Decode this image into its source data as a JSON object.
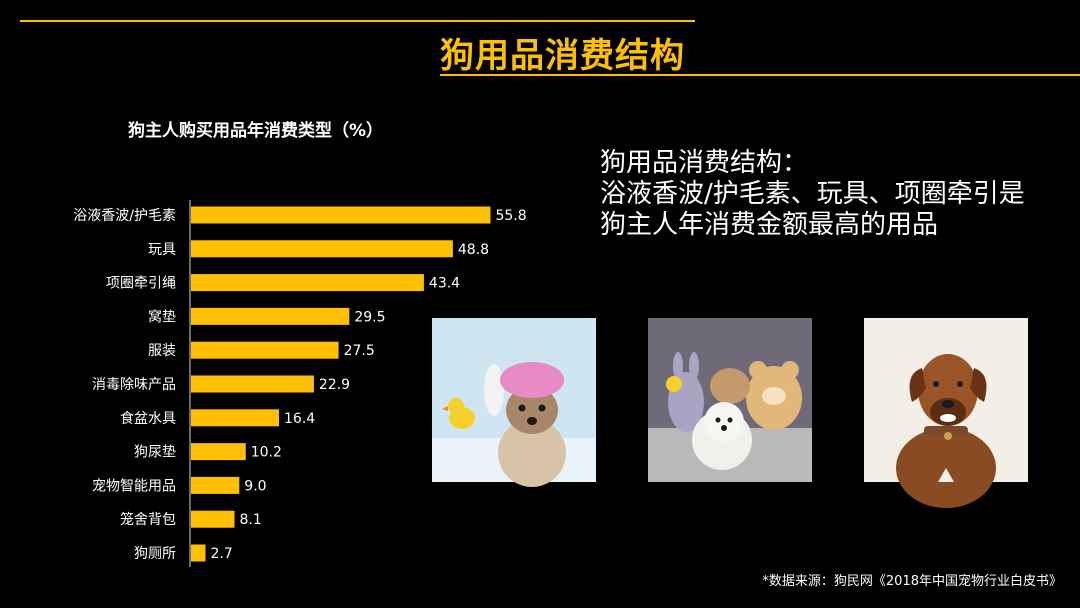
{
  "page": {
    "title": "狗用品消费结构",
    "accent_color": "#FFC000"
  },
  "chart_data": {
    "type": "bar",
    "orientation": "horizontal",
    "title": "狗主人购买用品年消费类型（%）",
    "categories": [
      "浴液香波/护毛素",
      "玩具",
      "项圈牵引绳",
      "窝垫",
      "服装",
      "消毒除味产品",
      "食盆水具",
      "狗尿垫",
      "宠物智能用品",
      "笼舍背包",
      "狗厕所"
    ],
    "values": [
      55.8,
      48.8,
      43.4,
      29.5,
      27.5,
      22.9,
      16.4,
      10.2,
      9.0,
      8.1,
      2.7
    ],
    "value_labels": [
      "55.8",
      "48.8",
      "43.4",
      "29.5",
      "27.5",
      "22.9",
      "16.4",
      "10.2",
      "9.0",
      "8.1",
      "2.7"
    ],
    "xlim": [
      0,
      60
    ],
    "bar_color": "#FFC000",
    "grid": false,
    "legend": "none"
  },
  "summary": {
    "lines": [
      "狗用品消费结构：",
      "浴液香波/护毛素、玩具、项圈牵引是",
      "狗主人年消费金额最高的用品"
    ]
  },
  "photos": [
    "dog-bath-photo-icon",
    "dog-with-toys-photo-icon",
    "dog-portrait-photo-icon"
  ],
  "source": "*数据来源：狗民网《2018年中国宠物行业白皮书》"
}
